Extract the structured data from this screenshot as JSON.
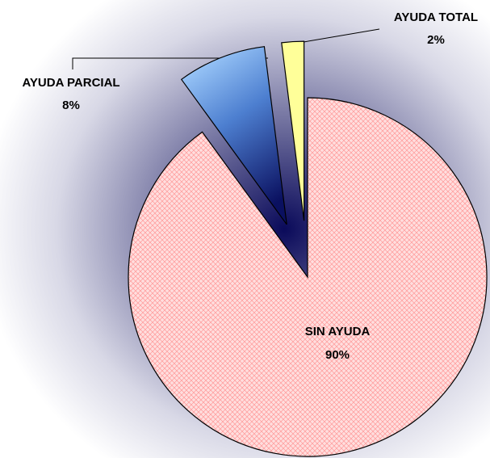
{
  "chart_data": {
    "type": "pie",
    "categories": [
      "SIN AYUDA",
      "AYUDA PARCIAL",
      "AYUDA TOTAL"
    ],
    "values": [
      90,
      8,
      2
    ],
    "value_labels": [
      "90%",
      "8%",
      "2%"
    ],
    "colors": [
      "#ffcccc",
      "#99ccff",
      "#ffff99"
    ]
  }
}
